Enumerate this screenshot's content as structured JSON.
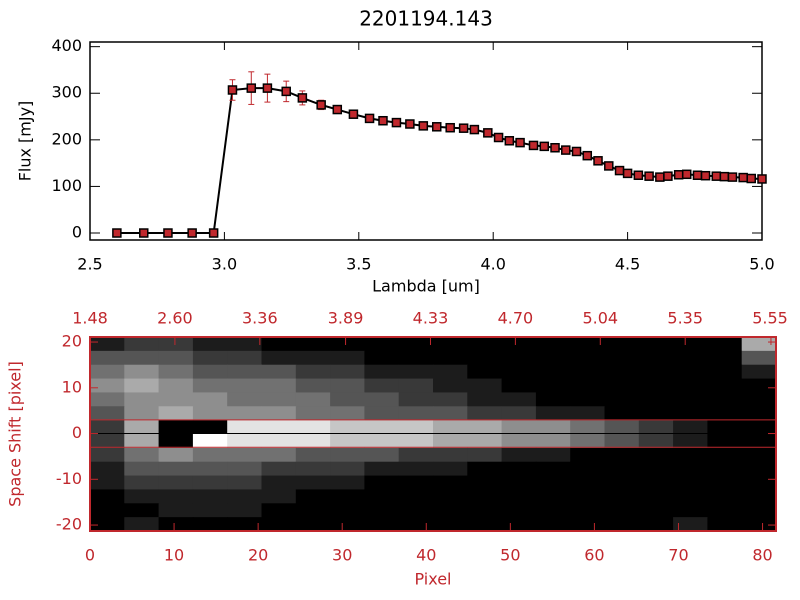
{
  "chart_data": [
    {
      "type": "line",
      "title": "2201194.143",
      "xlabel": "Lambda [um]",
      "ylabel": "Flux [mJy]",
      "xlim": [
        2.5,
        5.0
      ],
      "ylim": [
        -15,
        410
      ],
      "xticks": [
        2.5,
        {
          "value": 3,
          "label": "3.0"
        },
        3.5,
        {
          "value": 4,
          "label": "4.0"
        },
        4.5,
        {
          "value": 5,
          "label": "5.0"
        }
      ],
      "yticks": [
        0,
        100,
        200,
        300,
        400
      ],
      "axis_color": "#000000",
      "line_color": "#000000",
      "marker_color": "#c0282d",
      "error_color": "#c0282d",
      "x": [
        2.6,
        2.7,
        2.79,
        2.88,
        2.96,
        3.03,
        3.1,
        3.16,
        3.23,
        3.29,
        3.36,
        3.42,
        3.48,
        3.54,
        3.59,
        3.64,
        3.69,
        3.74,
        3.79,
        3.84,
        3.89,
        3.93,
        3.98,
        4.02,
        4.06,
        4.1,
        4.15,
        4.19,
        4.23,
        4.27,
        4.31,
        4.35,
        4.39,
        4.43,
        4.47,
        4.5,
        4.54,
        4.58,
        4.62,
        4.65,
        4.69,
        4.72,
        4.76,
        4.79,
        4.83,
        4.86,
        4.89,
        4.93,
        4.96,
        5.0
      ],
      "values": [
        0,
        0,
        0,
        0,
        0,
        307,
        311,
        311,
        304,
        290,
        275,
        265,
        255,
        246,
        241,
        237,
        234,
        230,
        228,
        226,
        225,
        222,
        215,
        205,
        198,
        194,
        188,
        186,
        183,
        178,
        175,
        166,
        155,
        144,
        134,
        128,
        124,
        122,
        120,
        122,
        125,
        126,
        124,
        123,
        122,
        121,
        120,
        119,
        117,
        116
      ],
      "errors": [
        3,
        3,
        3,
        3,
        3,
        22,
        35,
        30,
        22,
        15,
        10,
        6,
        5,
        4,
        4,
        4,
        4,
        4,
        4,
        4,
        4,
        4,
        4,
        4,
        4,
        4,
        4,
        4,
        4,
        4,
        4,
        4,
        4,
        4,
        4,
        4,
        4,
        4,
        4,
        4,
        4,
        4,
        4,
        4,
        4,
        4,
        4,
        4,
        4,
        4
      ]
    },
    {
      "type": "heatmap",
      "xlabel": "Pixel",
      "ylabel": "Space Shift [pixel]",
      "xlim": [
        0,
        81.6
      ],
      "ylim": [
        -21.3,
        21.1
      ],
      "xticks": [
        0,
        10,
        20,
        30,
        40,
        50,
        60,
        70,
        80
      ],
      "yticks": [
        -20,
        -10,
        0,
        10,
        20
      ],
      "x2ticks": [
        {
          "value": 0,
          "label": "1.48"
        },
        {
          "value": 10.1,
          "label": "2.60"
        },
        {
          "value": 20.2,
          "label": "3.36"
        },
        {
          "value": 30.4,
          "label": "3.89"
        },
        {
          "value": 40.5,
          "label": "4.33"
        },
        {
          "value": 50.6,
          "label": "4.70"
        },
        {
          "value": 60.7,
          "label": "5.04"
        },
        {
          "value": 70.8,
          "label": "5.35"
        },
        {
          "value": 81.0,
          "label": "5.55"
        }
      ],
      "axis_color": "#c0282d",
      "zlim": [
        0,
        9
      ],
      "z": [
        [
          1,
          2,
          2,
          1,
          1,
          0,
          0,
          0,
          0,
          0,
          0,
          0,
          0,
          0,
          0,
          0,
          0,
          0,
          0,
          6
        ],
        [
          3,
          3,
          3,
          2,
          2,
          1,
          1,
          1,
          0,
          0,
          0,
          0,
          0,
          0,
          0,
          0,
          0,
          0,
          0,
          3
        ],
        [
          4,
          5,
          4,
          3,
          3,
          3,
          2,
          2,
          1,
          1,
          1,
          0,
          0,
          0,
          0,
          0,
          0,
          0,
          0,
          1
        ],
        [
          5,
          6,
          5,
          4,
          4,
          4,
          3,
          3,
          2,
          2,
          1,
          1,
          0,
          0,
          0,
          0,
          0,
          0,
          0,
          0
        ],
        [
          4,
          5,
          5,
          5,
          4,
          4,
          4,
          3,
          3,
          2,
          2,
          1,
          1,
          0,
          0,
          0,
          0,
          0,
          0,
          0
        ],
        [
          3,
          5,
          6,
          5,
          5,
          5,
          4,
          4,
          3,
          3,
          3,
          2,
          2,
          1,
          1,
          0,
          0,
          0,
          0,
          0
        ],
        [
          2,
          6,
          null,
          null,
          8,
          8,
          8,
          7,
          7,
          7,
          6,
          6,
          5,
          5,
          4,
          3,
          2,
          1,
          0,
          0
        ],
        [
          2,
          6,
          null,
          9,
          8,
          8,
          8,
          7,
          7,
          7,
          6,
          6,
          5,
          5,
          4,
          3,
          2,
          1,
          0,
          0
        ],
        [
          2,
          4,
          5,
          4,
          4,
          4,
          3,
          3,
          3,
          2,
          2,
          2,
          1,
          1,
          0,
          0,
          0,
          0,
          0,
          0
        ],
        [
          1,
          3,
          3,
          3,
          3,
          2,
          2,
          2,
          1,
          1,
          1,
          0,
          0,
          0,
          0,
          0,
          0,
          0,
          0,
          0
        ],
        [
          1,
          2,
          2,
          2,
          2,
          1,
          1,
          1,
          0,
          0,
          0,
          0,
          0,
          0,
          0,
          0,
          0,
          0,
          0,
          0
        ],
        [
          0,
          1,
          1,
          1,
          1,
          1,
          0,
          0,
          0,
          0,
          0,
          0,
          0,
          0,
          0,
          0,
          0,
          0,
          0,
          0
        ],
        [
          0,
          0,
          1,
          1,
          1,
          0,
          0,
          0,
          0,
          0,
          0,
          0,
          0,
          0,
          0,
          0,
          0,
          0,
          0,
          0
        ],
        [
          0,
          1,
          0,
          0,
          0,
          0,
          0,
          0,
          0,
          0,
          0,
          0,
          0,
          0,
          0,
          0,
          0,
          1,
          0,
          0
        ]
      ],
      "lines": [
        {
          "y": 3,
          "color": "#c0282d"
        },
        {
          "y": -3,
          "color": "#c0282d"
        },
        {
          "y": 0,
          "color": "#000000"
        }
      ]
    }
  ]
}
